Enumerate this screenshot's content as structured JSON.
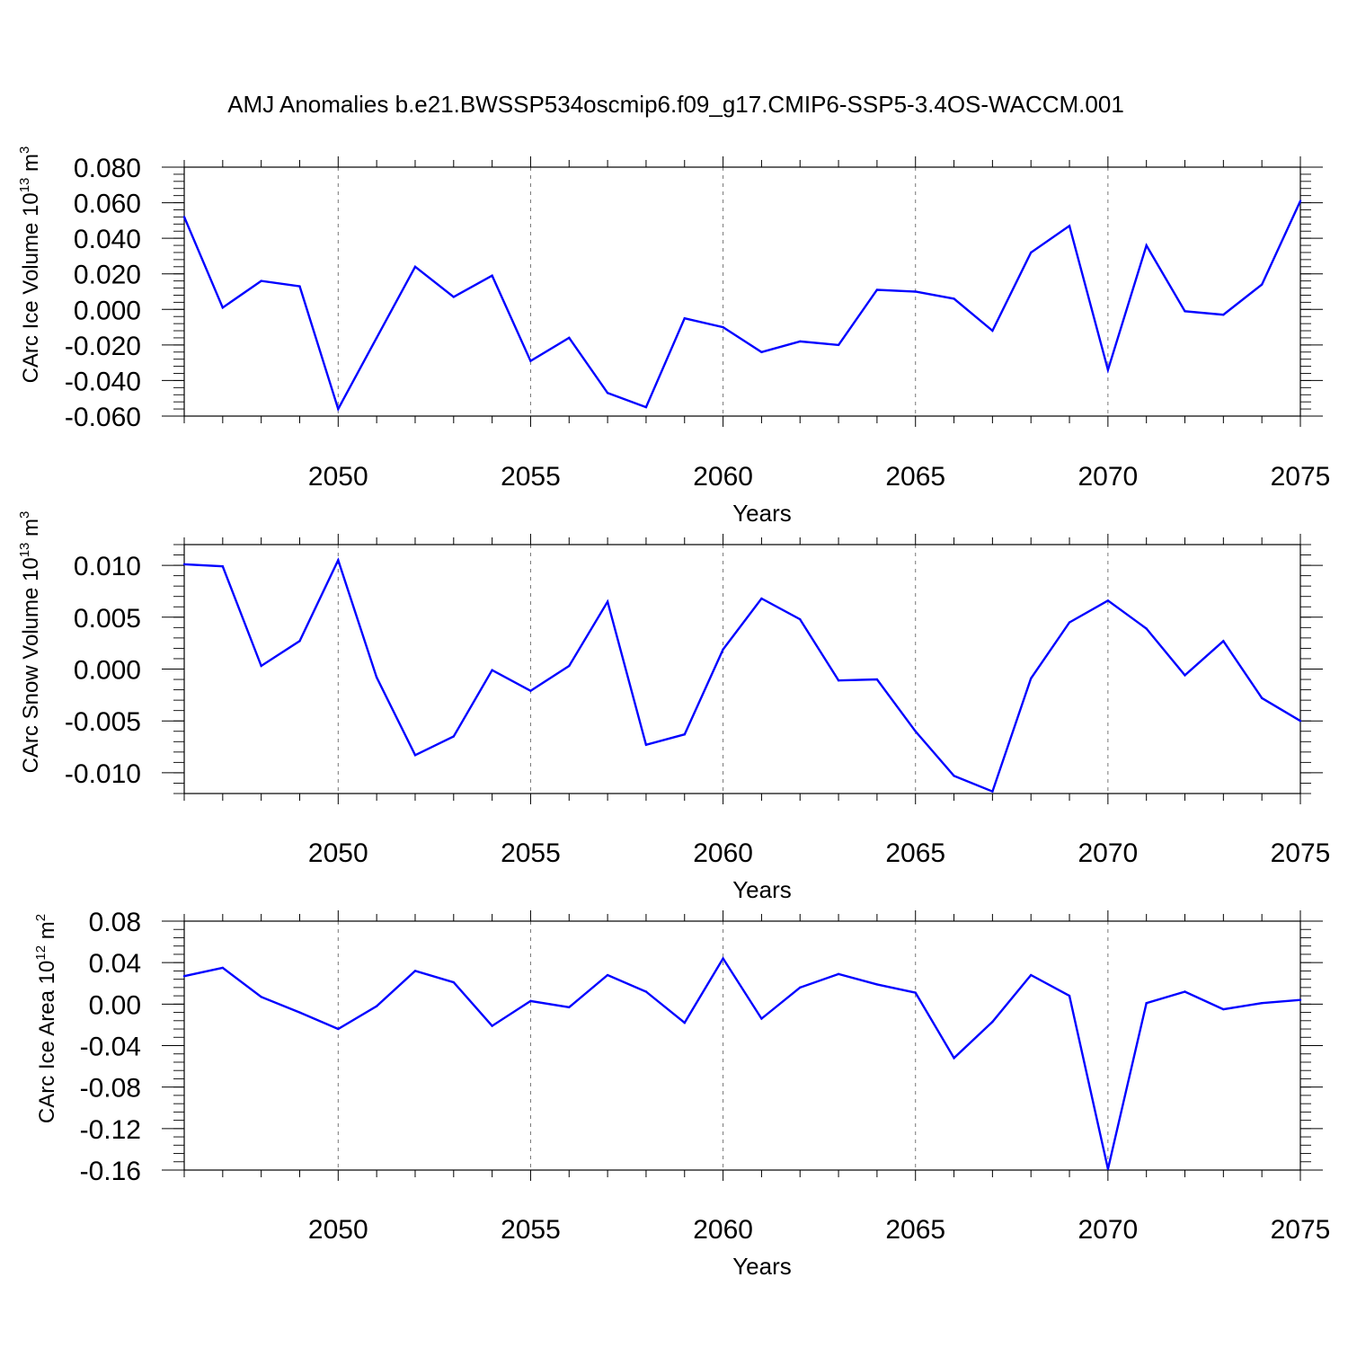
{
  "title": "AMJ Anomalies b.e21.BWSSP534oscmip6.f09_g17.CMIP6-SSP5-3.4OS-WACCM.001",
  "colors": {
    "series": "#0000ff",
    "axis": "#000000",
    "grid": "#777777",
    "background": "#ffffff"
  },
  "chart_data": [
    {
      "type": "line",
      "ylabel": "CArc Ice Volume 10",
      "ylabel_sup": "13",
      "ylabel_unit": " m",
      "ylabel_unit_sup": "3",
      "xlabel": "Years",
      "xlim": [
        2046,
        2075
      ],
      "ylim": [
        -0.06,
        0.08
      ],
      "yticks": [
        -0.06,
        -0.04,
        -0.02,
        0.0,
        0.02,
        0.04,
        0.06,
        0.08
      ],
      "yticklabels": [
        "-0.060",
        "-0.040",
        "-0.020",
        "0.000",
        "0.020",
        "0.040",
        "0.060",
        "0.080"
      ],
      "xticks": [
        2050,
        2055,
        2060,
        2065,
        2070,
        2075
      ],
      "xticklabels": [
        "2050",
        "2055",
        "2060",
        "2065",
        "2070",
        "2075"
      ],
      "grid": "vertical dashed at labeled years",
      "x": [
        2046,
        2047,
        2048,
        2049,
        2050,
        2051,
        2052,
        2053,
        2054,
        2055,
        2056,
        2057,
        2058,
        2059,
        2060,
        2061,
        2062,
        2063,
        2064,
        2065,
        2066,
        2067,
        2068,
        2069,
        2070,
        2071,
        2072,
        2073,
        2074,
        2075
      ],
      "y": [
        0.052,
        0.001,
        0.016,
        0.013,
        -0.056,
        -0.016,
        0.024,
        0.007,
        0.019,
        -0.029,
        -0.016,
        -0.047,
        -0.055,
        -0.005,
        -0.01,
        -0.024,
        -0.018,
        -0.02,
        0.011,
        0.01,
        0.006,
        -0.012,
        0.032,
        0.047,
        -0.034,
        0.036,
        -0.001,
        -0.003,
        0.014,
        0.061
      ]
    },
    {
      "type": "line",
      "ylabel": "CArc Snow Volume 10",
      "ylabel_sup": "13",
      "ylabel_unit": " m",
      "ylabel_unit_sup": "3",
      "xlabel": "Years",
      "xlim": [
        2046,
        2075
      ],
      "ylim": [
        -0.012,
        0.012
      ],
      "yticks": [
        -0.01,
        -0.005,
        0.0,
        0.005,
        0.01
      ],
      "yticklabels": [
        "-0.010",
        "-0.005",
        "0.000",
        "0.005",
        "0.010"
      ],
      "xticks": [
        2050,
        2055,
        2060,
        2065,
        2070,
        2075
      ],
      "xticklabels": [
        "2050",
        "2055",
        "2060",
        "2065",
        "2070",
        "2075"
      ],
      "grid": "vertical dashed at labeled years",
      "x": [
        2046,
        2047,
        2048,
        2049,
        2050,
        2051,
        2052,
        2053,
        2054,
        2055,
        2056,
        2057,
        2058,
        2059,
        2060,
        2061,
        2062,
        2063,
        2064,
        2065,
        2066,
        2067,
        2068,
        2069,
        2070,
        2071,
        2072,
        2073,
        2074,
        2075
      ],
      "y": [
        0.0101,
        0.0099,
        0.0003,
        0.0027,
        0.0105,
        -0.0008,
        -0.0083,
        -0.0065,
        -0.0001,
        -0.0021,
        0.0003,
        0.0065,
        -0.0073,
        -0.0063,
        0.0019,
        0.0068,
        0.0048,
        -0.0011,
        -0.001,
        -0.006,
        -0.0103,
        -0.0118,
        -0.0009,
        0.0045,
        0.0066,
        0.0039,
        -0.0006,
        0.0027,
        -0.0028,
        -0.005
      ]
    },
    {
      "type": "line",
      "ylabel": "CArc Ice Area 10",
      "ylabel_sup": "12",
      "ylabel_unit": " m",
      "ylabel_unit_sup": "2",
      "xlabel": "Years",
      "xlim": [
        2046,
        2075
      ],
      "ylim": [
        -0.16,
        0.08
      ],
      "yticks": [
        -0.16,
        -0.12,
        -0.08,
        -0.04,
        0.0,
        0.04,
        0.08
      ],
      "yticklabels": [
        "-0.16",
        "-0.12",
        "-0.08",
        "-0.04",
        "0.00",
        "0.04",
        "0.08"
      ],
      "xticks": [
        2050,
        2055,
        2060,
        2065,
        2070,
        2075
      ],
      "xticklabels": [
        "2050",
        "2055",
        "2060",
        "2065",
        "2070",
        "2075"
      ],
      "grid": "vertical dashed at labeled years",
      "x": [
        2046,
        2047,
        2048,
        2049,
        2050,
        2051,
        2052,
        2053,
        2054,
        2055,
        2056,
        2057,
        2058,
        2059,
        2060,
        2061,
        2062,
        2063,
        2064,
        2065,
        2066,
        2067,
        2068,
        2069,
        2070,
        2071,
        2072,
        2073,
        2074,
        2075
      ],
      "y": [
        0.027,
        0.035,
        0.007,
        -0.008,
        -0.024,
        -0.002,
        0.032,
        0.021,
        -0.021,
        0.003,
        -0.003,
        0.028,
        0.012,
        -0.018,
        0.044,
        -0.014,
        0.016,
        0.029,
        0.019,
        0.011,
        -0.052,
        -0.017,
        0.028,
        0.008,
        -0.159,
        0.001,
        0.012,
        -0.005,
        0.001,
        0.004
      ]
    }
  ]
}
